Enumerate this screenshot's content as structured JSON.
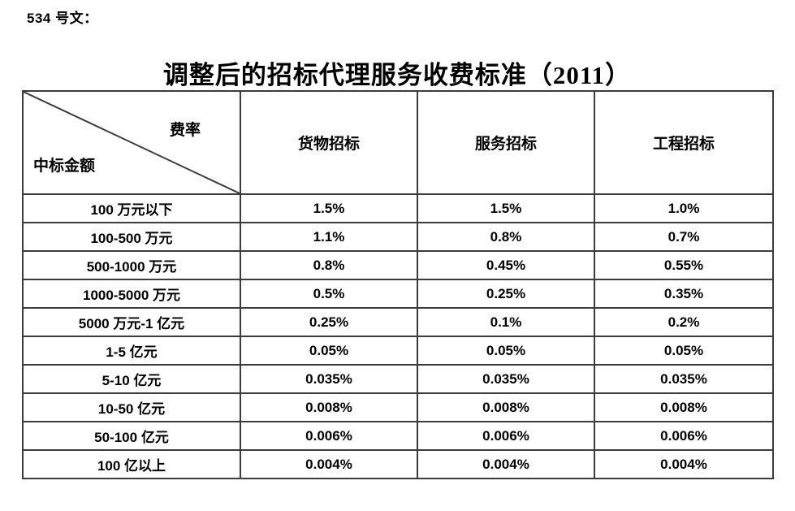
{
  "doc": {
    "ref_label": "534 号文：",
    "title": "调整后的招标代理服务收费标准（2011）"
  },
  "table": {
    "corner": {
      "top_right": "费率",
      "bottom_left": "中标金额"
    },
    "columns": [
      "货物招标",
      "服务招标",
      "工程招标"
    ],
    "rows": [
      {
        "range": "100 万元以下",
        "values": [
          "1.5%",
          "1.5%",
          "1.0%"
        ]
      },
      {
        "range": "100-500 万元",
        "values": [
          "1.1%",
          "0.8%",
          "0.7%"
        ]
      },
      {
        "range": "500-1000 万元",
        "values": [
          "0.8%",
          "0.45%",
          "0.55%"
        ]
      },
      {
        "range": "1000-5000 万元",
        "values": [
          "0.5%",
          "0.25%",
          "0.35%"
        ]
      },
      {
        "range": "5000 万元-1 亿元",
        "values": [
          "0.25%",
          "0.1%",
          "0.2%"
        ]
      },
      {
        "range": "1-5 亿元",
        "values": [
          "0.05%",
          "0.05%",
          "0.05%"
        ]
      },
      {
        "range": "5-10 亿元",
        "values": [
          "0.035%",
          "0.035%",
          "0.035%"
        ]
      },
      {
        "range": "10-50 亿元",
        "values": [
          "0.008%",
          "0.008%",
          "0.008%"
        ]
      },
      {
        "range": "50-100 亿元",
        "values": [
          "0.006%",
          "0.006%",
          "0.006%"
        ]
      },
      {
        "range": "100 亿以上",
        "values": [
          "0.004%",
          "0.004%",
          "0.004%"
        ]
      }
    ]
  },
  "colors": {
    "text": "#000000",
    "border": "#3c3c3c",
    "background": "#ffffff"
  }
}
